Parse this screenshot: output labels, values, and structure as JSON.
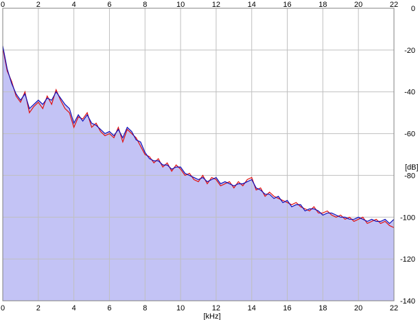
{
  "chart_data": {
    "type": "area",
    "title": "",
    "xlabel": "[kHz]",
    "ylabel": "[dB]",
    "xlim": [
      0,
      22
    ],
    "ylim": [
      -140,
      0
    ],
    "x_ticks": [
      0,
      2,
      4,
      6,
      8,
      10,
      12,
      14,
      16,
      18,
      20,
      22
    ],
    "y_ticks": [
      0,
      -20,
      -40,
      -60,
      -80,
      -100,
      -120,
      -140
    ],
    "x_tick_labels": [
      "0",
      "2",
      "4",
      "6",
      "8",
      "10",
      "12",
      "14",
      "16",
      "18",
      "20",
      "22"
    ],
    "y_tick_labels": [
      "0",
      "-20",
      "-40",
      "-60",
      "-80",
      "-100",
      "-120",
      "-140"
    ],
    "grid": true,
    "colors": {
      "fill": "#c3c3f5",
      "series_red": "#e01010",
      "series_blue": "#1010b8",
      "grid": "#bfbfbf",
      "axis": "#808080"
    },
    "series": [
      {
        "color": "#e01010",
        "x": [
          0,
          0.25,
          0.5,
          0.75,
          1,
          1.25,
          1.5,
          1.75,
          2,
          2.25,
          2.5,
          2.75,
          3,
          3.25,
          3.5,
          3.75,
          4,
          4.25,
          4.5,
          4.75,
          5,
          5.25,
          5.5,
          5.75,
          6,
          6.25,
          6.5,
          6.75,
          7,
          7.25,
          7.5,
          7.75,
          8,
          8.25,
          8.5,
          8.75,
          9,
          9.25,
          9.5,
          9.75,
          10,
          10.25,
          10.5,
          10.75,
          11,
          11.25,
          11.5,
          11.75,
          12,
          12.25,
          12.5,
          12.75,
          13,
          13.25,
          13.5,
          13.75,
          14,
          14.25,
          14.5,
          14.75,
          15,
          15.25,
          15.5,
          15.75,
          16,
          16.25,
          16.5,
          16.75,
          17,
          17.25,
          17.5,
          17.75,
          18,
          18.25,
          18.5,
          18.75,
          19,
          19.25,
          19.5,
          19.75,
          20,
          20.25,
          20.5,
          20.75,
          21,
          21.25,
          21.5,
          21.75,
          22
        ],
        "y": [
          -19,
          -30,
          -35,
          -42,
          -45,
          -40,
          -50,
          -47,
          -45,
          -48,
          -42,
          -46,
          -39,
          -44,
          -48,
          -50,
          -57,
          -52,
          -53,
          -50,
          -57,
          -55,
          -59,
          -61,
          -60,
          -62,
          -57,
          -64,
          -58,
          -60,
          -62,
          -66,
          -70,
          -71,
          -74,
          -72,
          -76,
          -74,
          -78,
          -75,
          -77,
          -80,
          -79,
          -82,
          -83,
          -80,
          -84,
          -81,
          -82,
          -85,
          -84,
          -83,
          -86,
          -83,
          -85,
          -82,
          -81,
          -87,
          -86,
          -90,
          -88,
          -90,
          -91,
          -92,
          -93,
          -94,
          -93,
          -95,
          -96,
          -97,
          -95,
          -98,
          -98,
          -97,
          -99,
          -100,
          -99,
          -101,
          -100,
          -102,
          -101,
          -100,
          -103,
          -102,
          -101,
          -103,
          -102,
          -104,
          -105
        ]
      },
      {
        "color": "#1010b8",
        "x": [
          0,
          0.25,
          0.5,
          0.75,
          1,
          1.25,
          1.5,
          1.75,
          2,
          2.25,
          2.5,
          2.75,
          3,
          3.25,
          3.5,
          3.75,
          4,
          4.25,
          4.5,
          4.75,
          5,
          5.25,
          5.5,
          5.75,
          6,
          6.25,
          6.5,
          6.75,
          7,
          7.25,
          7.5,
          7.75,
          8,
          8.25,
          8.5,
          8.75,
          9,
          9.25,
          9.5,
          9.75,
          10,
          10.25,
          10.5,
          10.75,
          11,
          11.25,
          11.5,
          11.75,
          12,
          12.25,
          12.5,
          12.75,
          13,
          13.25,
          13.5,
          13.75,
          14,
          14.25,
          14.5,
          14.75,
          15,
          15.25,
          15.5,
          15.75,
          16,
          16.25,
          16.5,
          16.75,
          17,
          17.25,
          17.5,
          17.75,
          18,
          18.25,
          18.5,
          18.75,
          19,
          19.25,
          19.5,
          19.75,
          20,
          20.25,
          20.5,
          20.75,
          21,
          21.25,
          21.5,
          21.75,
          22
        ],
        "y": [
          -18,
          -29,
          -36,
          -41,
          -44,
          -41,
          -48,
          -46,
          -44,
          -46,
          -43,
          -44,
          -40,
          -43,
          -46,
          -48,
          -55,
          -51,
          -54,
          -51,
          -55,
          -56,
          -58,
          -60,
          -59,
          -61,
          -58,
          -62,
          -57,
          -59,
          -63,
          -64,
          -69,
          -72,
          -73,
          -73,
          -75,
          -75,
          -77,
          -76,
          -76,
          -79,
          -80,
          -81,
          -82,
          -81,
          -83,
          -82,
          -81,
          -84,
          -83,
          -84,
          -85,
          -84,
          -84,
          -83,
          -82,
          -86,
          -87,
          -89,
          -89,
          -91,
          -90,
          -93,
          -92,
          -95,
          -94,
          -94,
          -97,
          -96,
          -96,
          -97,
          -99,
          -98,
          -98,
          -99,
          -100,
          -100,
          -101,
          -101,
          -100,
          -101,
          -102,
          -101,
          -102,
          -102,
          -101,
          -103,
          -101
        ]
      }
    ]
  }
}
